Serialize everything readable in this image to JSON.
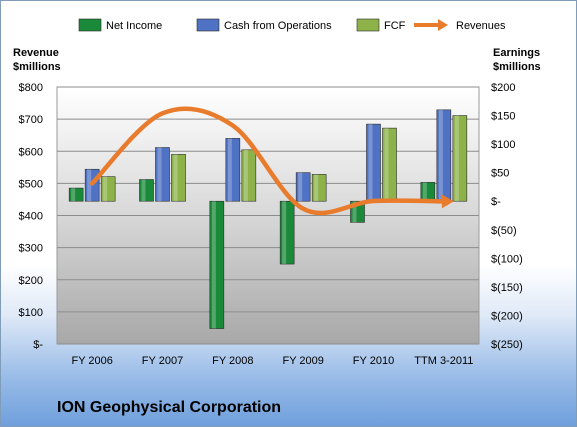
{
  "chart_data": {
    "type": "bar",
    "company": "ION Geophysical Corporation",
    "left_axis_title": [
      "Revenue",
      "$millions"
    ],
    "right_axis_title": [
      "Earnings",
      "$millions"
    ],
    "categories": [
      "FY 2006",
      "FY 2007",
      "FY 2008",
      "FY 2009",
      "FY 2010",
      "TTM 3-2011"
    ],
    "left_ticks": [
      "$-",
      "$100",
      "$200",
      "$300",
      "$400",
      "$500",
      "$600",
      "$700",
      "$800"
    ],
    "right_ticks": [
      "$(250)",
      "$(200)",
      "$(150)",
      "$(100)",
      "$(50)",
      "$-",
      "$50",
      "$100",
      "$150",
      "$200"
    ],
    "left_ylim": [
      0,
      800
    ],
    "right_ylim": [
      -250,
      200
    ],
    "series": [
      {
        "name": "Net Income",
        "type": "bar",
        "axis": "right",
        "color": "#1a8a3a",
        "values": [
          23,
          38,
          -223,
          -110,
          -37,
          33
        ]
      },
      {
        "name": "Cash from Operations",
        "type": "bar",
        "axis": "right",
        "color": "#4f72c4",
        "values": [
          56,
          94,
          110,
          50,
          135,
          160
        ]
      },
      {
        "name": "FCF",
        "type": "bar",
        "axis": "right",
        "color": "#8db24a",
        "values": [
          43,
          82,
          90,
          47,
          128,
          150
        ]
      },
      {
        "name": "Revenues",
        "type": "line",
        "axis": "left",
        "color": "#e87b2c",
        "values": [
          500,
          718,
          680,
          421,
          445,
          444
        ]
      }
    ]
  }
}
